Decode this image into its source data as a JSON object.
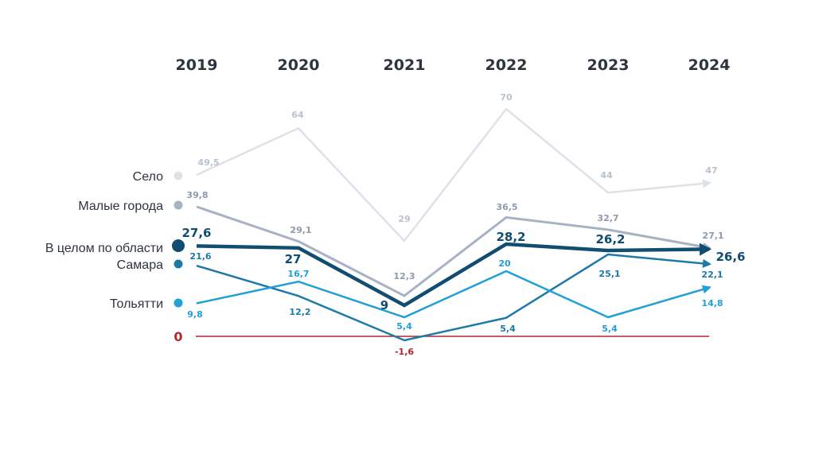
{
  "chart_data": {
    "type": "line",
    "categories": [
      "2019",
      "2020",
      "2021",
      "2022",
      "2023",
      "2024"
    ],
    "series": [
      {
        "name": "Село",
        "key": "selo",
        "values": [
          49.5,
          64,
          29,
          70,
          44,
          47
        ],
        "labels": [
          "49,5",
          "64",
          "29",
          "70",
          "44",
          "47"
        ],
        "color": "#dde1e8"
      },
      {
        "name": "Малые города",
        "key": "malye",
        "values": [
          39.8,
          29.1,
          12.3,
          36.5,
          32.7,
          27.1
        ],
        "labels": [
          "39,8",
          "29,1",
          "12,3",
          "36,5",
          "32,7",
          "27,1"
        ],
        "color": "#a7b2c4"
      },
      {
        "name": "В целом по области",
        "key": "oblast",
        "values": [
          27.6,
          27,
          9,
          28.2,
          26.2,
          26.6
        ],
        "labels": [
          "27,6",
          "27",
          "9",
          "28,2",
          "26,2",
          "26,6"
        ],
        "color": "#114d70"
      },
      {
        "name": "Самара",
        "key": "samara",
        "values": [
          21.6,
          12.2,
          -1.6,
          5.4,
          25.1,
          22.1
        ],
        "labels": [
          "21,6",
          "12,2",
          "-1,6",
          "5,4",
          "25,1",
          "22,1"
        ],
        "color": "#1d7aa8"
      },
      {
        "name": "Тольятти",
        "key": "tolyatti",
        "values": [
          9.8,
          16.7,
          5.4,
          20,
          5.4,
          14.8
        ],
        "labels": [
          "9,8",
          "16,7",
          "5,4",
          "20",
          "5,4",
          "14,8"
        ],
        "color": "#219fd7"
      }
    ],
    "zero_line": {
      "label": "0",
      "color": "#b3262d"
    }
  }
}
